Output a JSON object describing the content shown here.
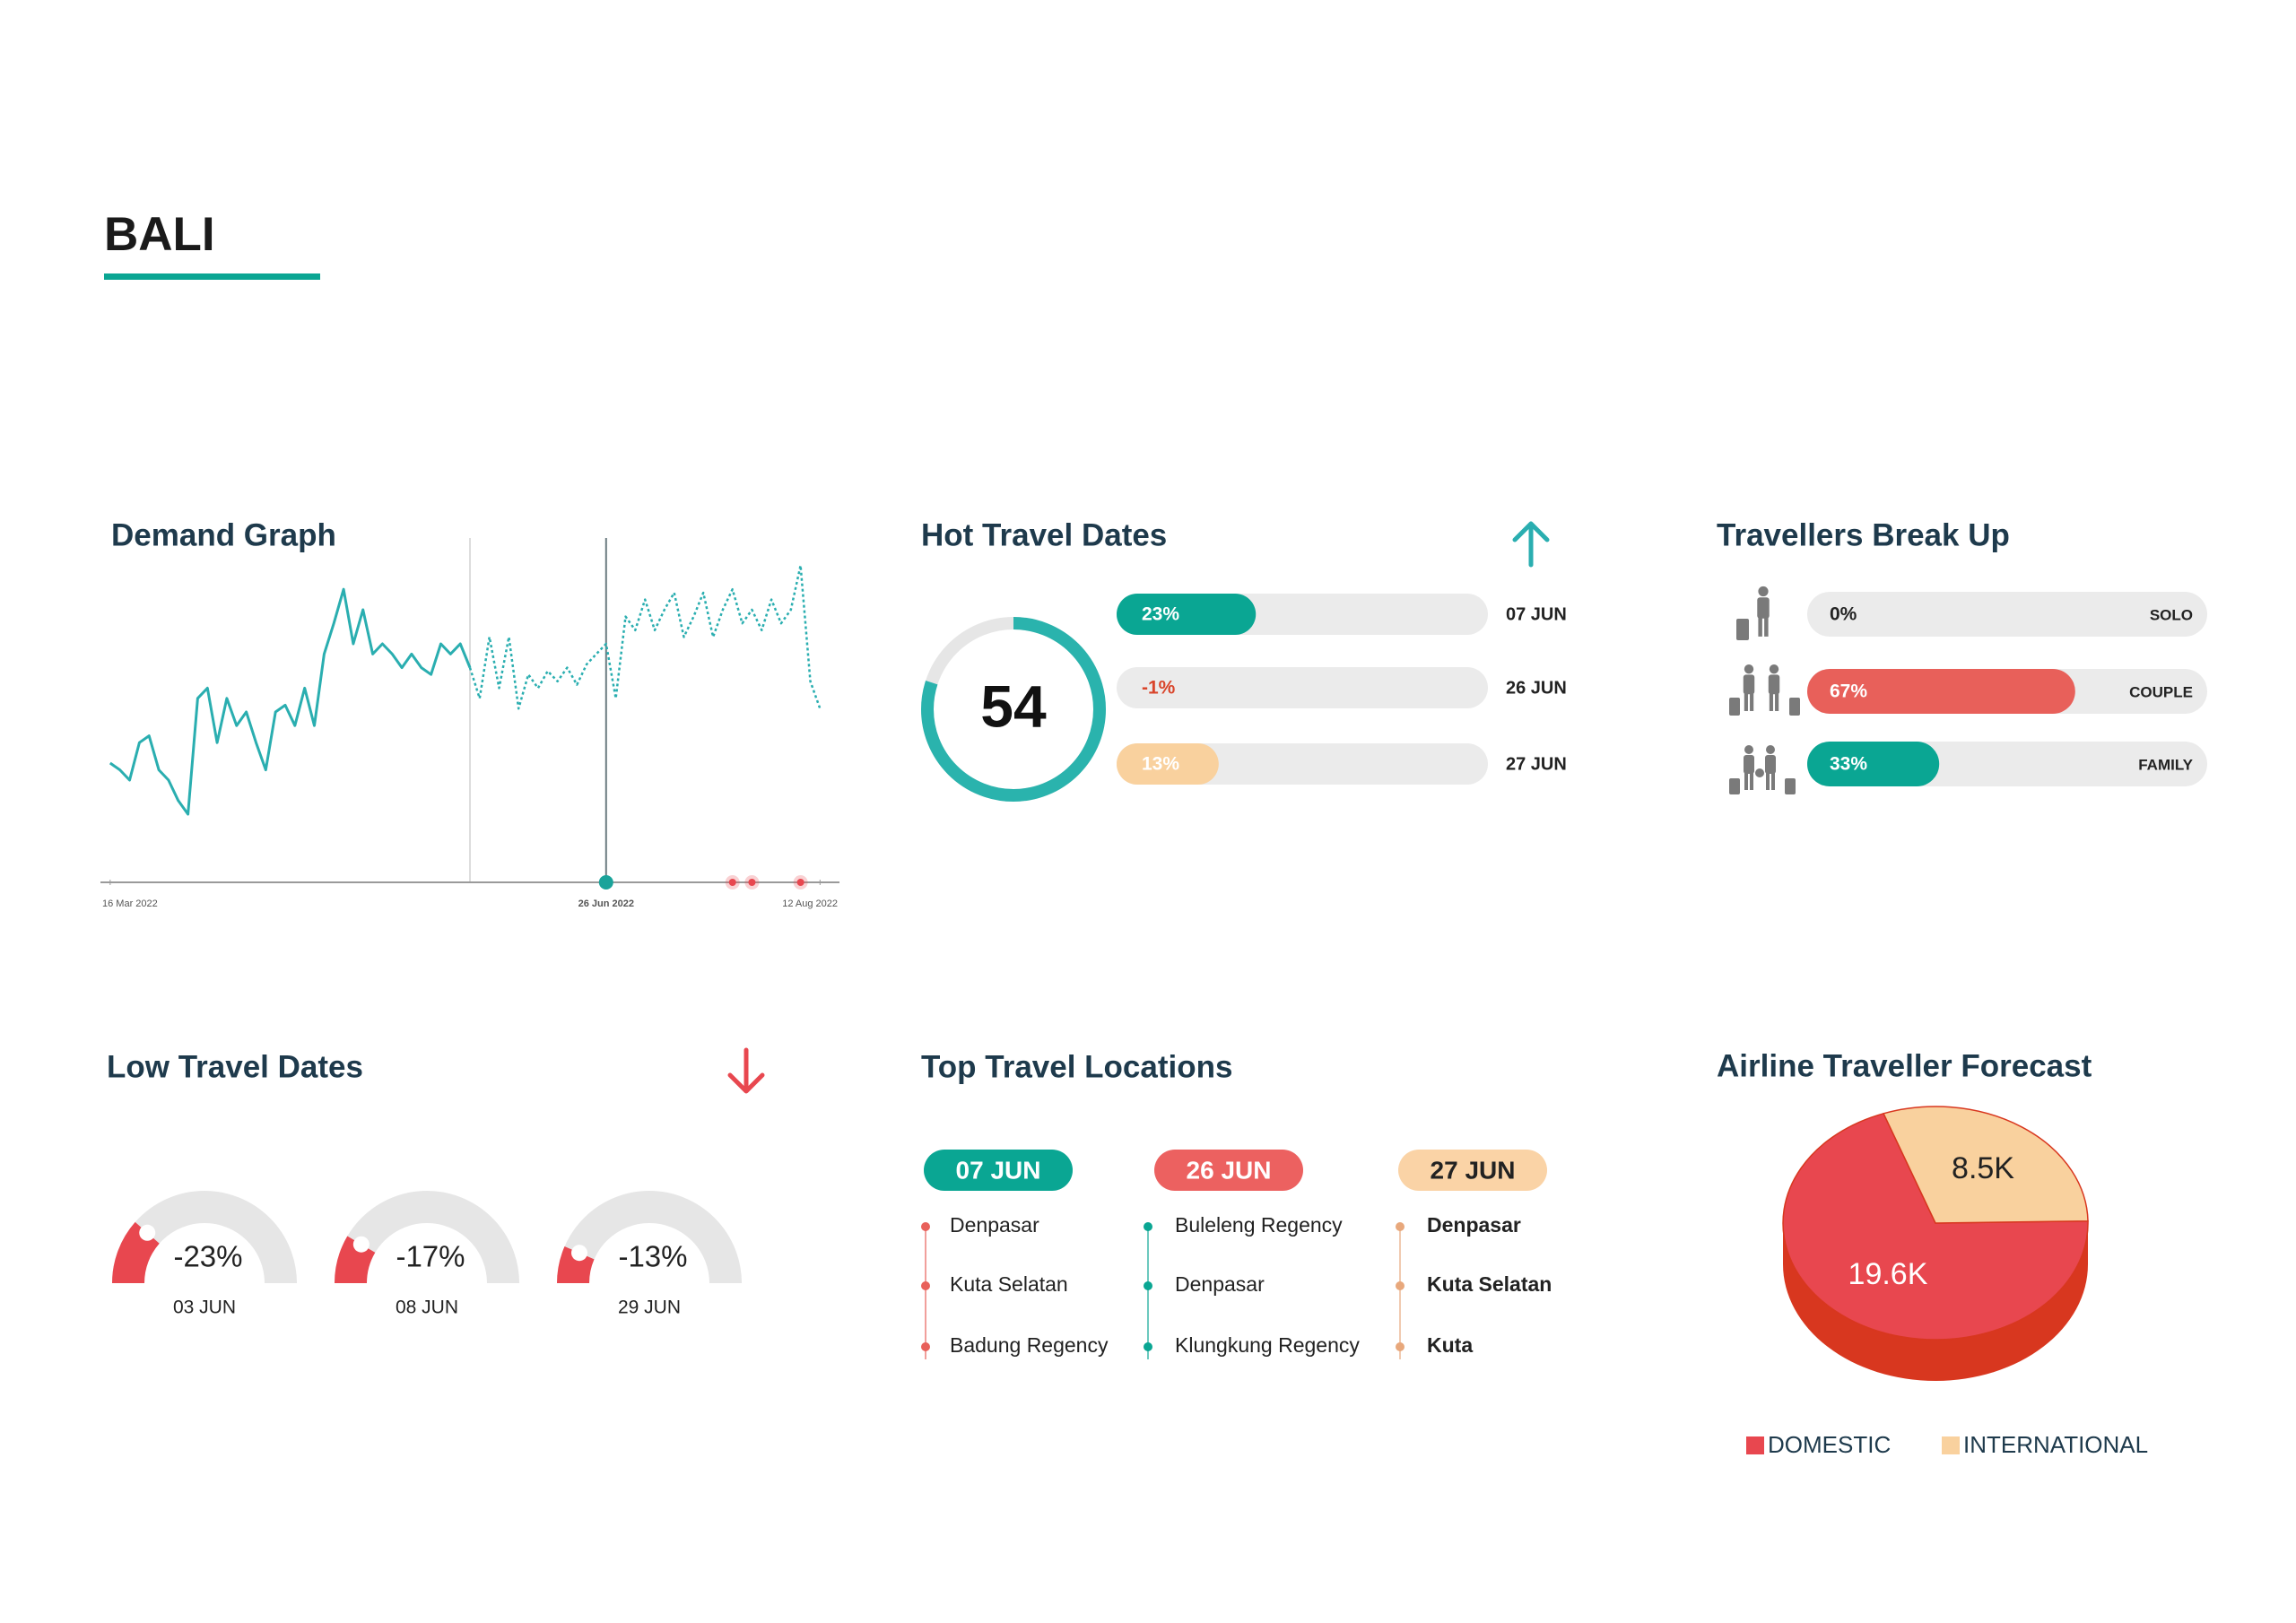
{
  "header": {
    "title": "BALI"
  },
  "demand_graph": {
    "type": "line",
    "title": "Demand Graph",
    "xlim": [
      -1,
      75
    ],
    "ylim": [
      0,
      100
    ],
    "xticks": [
      {
        "value": 0,
        "label": "16 Mar 2022"
      },
      {
        "value": 51,
        "label": "26 Jun 2022"
      },
      {
        "value": 73,
        "label": "12 Aug 2022"
      }
    ],
    "series": [
      {
        "color": "#2aaeb0",
        "style": "solid",
        "values": [
          35,
          33,
          30,
          41,
          43,
          33,
          30,
          24,
          20,
          54,
          57,
          41,
          54,
          46,
          50,
          41,
          33,
          50,
          52,
          46,
          57,
          46,
          67,
          76,
          86,
          70,
          80,
          67,
          70,
          67,
          63,
          67,
          63,
          61,
          70,
          67,
          70,
          63,
          null,
          null,
          null,
          null,
          null,
          null,
          null,
          null,
          null,
          null,
          null,
          null,
          null,
          null,
          null,
          null,
          null,
          null,
          null,
          null,
          null,
          null,
          null,
          null,
          null,
          null,
          null,
          null,
          null,
          null,
          null,
          null,
          null,
          null,
          null,
          null
        ]
      },
      {
        "color": "#2aaeb0",
        "style": "dotted",
        "values": [
          null,
          null,
          null,
          null,
          null,
          null,
          null,
          null,
          null,
          null,
          null,
          null,
          null,
          null,
          null,
          null,
          null,
          null,
          null,
          null,
          null,
          null,
          null,
          null,
          null,
          null,
          null,
          null,
          null,
          null,
          null,
          null,
          null,
          null,
          null,
          null,
          null,
          63,
          54,
          72,
          57,
          72,
          51,
          61,
          57,
          62,
          59,
          63,
          58,
          64,
          67,
          70,
          54,
          78,
          74,
          83,
          74,
          80,
          85,
          72,
          78,
          85,
          72,
          80,
          86,
          76,
          80,
          74,
          83,
          76,
          80,
          93,
          59,
          51
        ]
      }
    ],
    "reference_lines": [
      {
        "x": 37,
        "color": "#dddddd"
      },
      {
        "x": 51,
        "color": "#6b7b80"
      }
    ],
    "highlight_points": [
      {
        "x": 51,
        "color": "#1aa39a"
      }
    ],
    "event_points": [
      {
        "x": 64,
        "color": "#e8474f"
      },
      {
        "x": 66,
        "color": "#e8474f"
      },
      {
        "x": 71,
        "color": "#e8474f"
      }
    ]
  },
  "hot_travel_dates": {
    "title": "Hot Travel Dates",
    "trend": "up",
    "trend_color": "#2aaeb0",
    "score": 54,
    "rows": [
      {
        "change": {
          "value": 23,
          "label": "23%"
        },
        "date": "07 JUN",
        "color": "#0aa693",
        "text_color": "#ffffff"
      },
      {
        "change": {
          "value": -1,
          "label": "-1%"
        },
        "date": "26 JUN",
        "color": "#e8605a",
        "text_color": "#d9452b"
      },
      {
        "change": {
          "value": 13,
          "label": "13%"
        },
        "date": "27 JUN",
        "color": "#f9d19e",
        "text_color": "#ffffff"
      }
    ]
  },
  "travellers_break_up": {
    "title": "Travellers Break Up",
    "rows": [
      {
        "share": {
          "value": 0,
          "label": "0%"
        },
        "group": "SOLO",
        "color": "#e8605a",
        "text_color": "#222222"
      },
      {
        "share": {
          "value": 67,
          "label": "67%"
        },
        "group": "COUPLE",
        "color": "#e8605a",
        "text_color": "#ffffff"
      },
      {
        "share": {
          "value": 33,
          "label": "33%"
        },
        "group": "FAMILY",
        "color": "#0aa693",
        "text_color": "#ffffff"
      }
    ]
  },
  "low_travel_dates": {
    "title": "Low Travel Dates",
    "trend": "down",
    "trend_color": "#e8474f",
    "color": "#e8474f",
    "gauges": [
      {
        "change": {
          "value": -23,
          "label": "-23%"
        },
        "date": "03 JUN"
      },
      {
        "change": {
          "value": -17,
          "label": "-17%"
        },
        "date": "08 JUN"
      },
      {
        "change": {
          "value": -13,
          "label": "-13%"
        },
        "date": "29 JUN"
      }
    ]
  },
  "top_travel_locations": {
    "title": "Top Travel Locations",
    "columns": [
      {
        "date": "07 JUN",
        "color": "#0aa693",
        "text_color": "#ffffff",
        "dot_color": "#e8605a",
        "places": [
          "Denpasar",
          "Kuta Selatan",
          "Badung Regency"
        ]
      },
      {
        "date": "26 JUN",
        "color": "#ec6160",
        "text_color": "#ffffff",
        "dot_color": "#0aa693",
        "places": [
          "Buleleng Regency",
          "Denpasar",
          "Klungkung Regency"
        ]
      },
      {
        "date": "27 JUN",
        "color": "#fad3a6",
        "text_color": "#222222",
        "dot_color": "#e8a87c",
        "places": [
          "Denpasar",
          "Kuta Selatan",
          "Kuta"
        ]
      }
    ]
  },
  "airline_forecast": {
    "type": "pie",
    "title": "Airline Traveller Forecast",
    "categories": [
      "DOMESTIC",
      "INTERNATIONAL"
    ],
    "values": [
      19600,
      8500
    ],
    "value_labels": [
      "19.6K",
      "8.5K"
    ],
    "colors": [
      "#e8474f",
      "#f9d19e"
    ],
    "label_colors": [
      "#ffffff",
      "#222222"
    ],
    "side_color": "#d8371f"
  }
}
